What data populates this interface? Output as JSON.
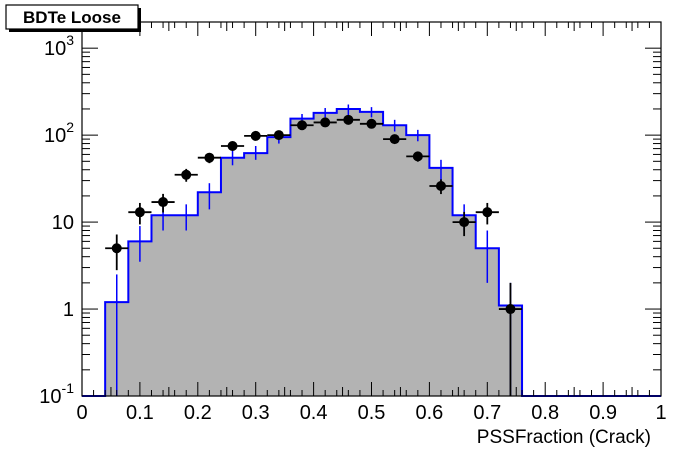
{
  "chart_data": {
    "type": "histogram",
    "title": "BDTe Loose",
    "xlabel": "PSSFraction (Crack)",
    "ylabel": "",
    "xlim": [
      0,
      1
    ],
    "ylim": [
      0.1,
      2000
    ],
    "yscale": "log",
    "x_ticks": [
      "0",
      "0.1",
      "0.2",
      "0.3",
      "0.4",
      "0.5",
      "0.6",
      "0.7",
      "0.8",
      "0.9",
      "1"
    ],
    "y_ticks": [
      {
        "value": 0.1,
        "base": "10",
        "exp": "-1"
      },
      {
        "value": 1,
        "base": "1",
        "exp": ""
      },
      {
        "value": 10,
        "base": "10",
        "exp": ""
      },
      {
        "value": 100,
        "base": "10",
        "exp": "2"
      },
      {
        "value": 1000,
        "base": "10",
        "exp": "3"
      }
    ],
    "grid": false,
    "legend": "none",
    "colors": {
      "mc_fill": "#b3b3b3",
      "mc_line": "#0000ff",
      "data_marker": "#000000"
    },
    "series": [
      {
        "kind": "mc_histogram",
        "bin_edges": [
          0.04,
          0.08,
          0.12,
          0.16,
          0.2,
          0.24,
          0.28,
          0.32,
          0.36,
          0.4,
          0.44,
          0.48,
          0.52,
          0.56,
          0.6,
          0.64,
          0.68,
          0.72,
          0.76
        ],
        "values": [
          1.2,
          6,
          12,
          12,
          22,
          55,
          62,
          95,
          155,
          180,
          200,
          185,
          130,
          100,
          42,
          12,
          5,
          1.1
        ],
        "err_low": [
          0.05,
          3.5,
          8,
          8,
          14,
          45,
          52,
          80,
          130,
          160,
          170,
          160,
          110,
          85,
          30,
          8,
          2,
          0.05
        ],
        "err_high": [
          2.5,
          9,
          16,
          16,
          28,
          68,
          75,
          110,
          175,
          205,
          225,
          210,
          150,
          115,
          52,
          16,
          8,
          2
        ]
      },
      {
        "kind": "data_points",
        "x": [
          0.06,
          0.1,
          0.14,
          0.18,
          0.22,
          0.26,
          0.3,
          0.34,
          0.38,
          0.42,
          0.46,
          0.5,
          0.54,
          0.58,
          0.62,
          0.66,
          0.7,
          0.74
        ],
        "y": [
          5,
          13,
          17,
          35,
          55,
          75,
          98,
          100,
          130,
          140,
          150,
          135,
          90,
          57,
          26,
          10,
          13,
          1
        ],
        "err_low": [
          2.8,
          9.4,
          12.9,
          29.1,
          47.6,
          66.3,
          88.1,
          90,
          118.6,
          128.2,
          137.8,
          123.4,
          80.5,
          49.5,
          21,
          6.9,
          9.4,
          0.05
        ],
        "err_high": [
          7.2,
          16.6,
          21.1,
          40.9,
          62.4,
          83.7,
          107.9,
          110,
          141.4,
          151.8,
          162.2,
          146.6,
          99.5,
          64.5,
          31,
          13.1,
          16.6,
          2
        ]
      }
    ]
  }
}
